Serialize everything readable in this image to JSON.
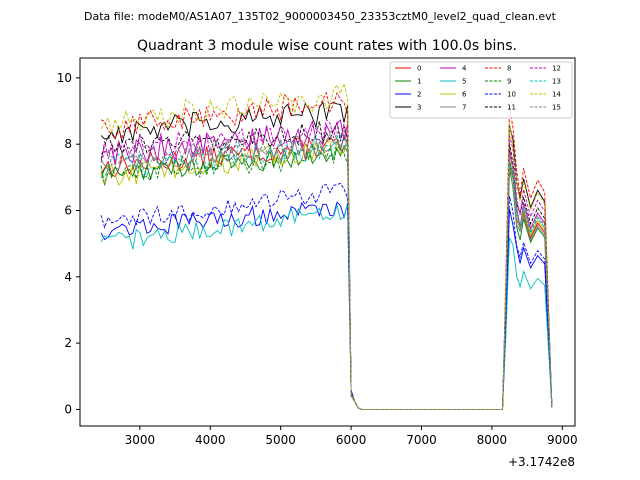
{
  "suptitle": "Data file: modeM0/AS1A07_135T02_9000003450_23353cztM0_level2_quad_clean.evt",
  "chart_data": {
    "type": "line",
    "title": "Quadrant 3 module wise count rates with 100.0s bins.",
    "xlabel": "",
    "ylabel": "",
    "x_offset_label": "+3.1742e8",
    "xlim": [
      2150,
      9180
    ],
    "ylim": [
      -0.5,
      10.6
    ],
    "x_ticks": [
      3000,
      4000,
      5000,
      6000,
      7000,
      8000,
      9000
    ],
    "x_tick_labels": [
      "3000",
      "4000",
      "5000",
      "6000",
      "7000",
      "8000",
      "9000"
    ],
    "y_ticks": [
      0,
      2,
      4,
      6,
      8,
      10
    ],
    "y_tick_labels": [
      "0",
      "2",
      "4",
      "6",
      "8",
      "10"
    ],
    "grid": false,
    "legend_position": "top-right",
    "segments": [
      [
        2450,
        5950
      ],
      [
        6000,
        6150
      ],
      [
        8150,
        8850
      ]
    ],
    "series": [
      {
        "name": "0",
        "color": "#ff0000",
        "dash": false,
        "level": 7.3,
        "amp": 0.35,
        "trend": 0.7,
        "peak": 7.4
      },
      {
        "name": "1",
        "color": "#008000",
        "dash": false,
        "level": 7.1,
        "amp": 0.3,
        "trend": 0.6,
        "peak": 7.2
      },
      {
        "name": "2",
        "color": "#0000ff",
        "dash": false,
        "level": 5.4,
        "amp": 0.3,
        "trend": 0.7,
        "peak": 6.1
      },
      {
        "name": "3",
        "color": "#000000",
        "dash": false,
        "level": 8.3,
        "amp": 0.4,
        "trend": 0.7,
        "peak": 8.7
      },
      {
        "name": "4",
        "color": "#bf00bf",
        "dash": false,
        "level": 7.7,
        "amp": 0.4,
        "trend": 0.7,
        "peak": 7.8
      },
      {
        "name": "5",
        "color": "#00bfbf",
        "dash": false,
        "level": 5.0,
        "amp": 0.3,
        "trend": 1.0,
        "peak": 5.2
      },
      {
        "name": "6",
        "color": "#bfbf00",
        "dash": false,
        "level": 7.0,
        "amp": 0.35,
        "trend": 0.9,
        "peak": 7.5
      },
      {
        "name": "7",
        "color": "#808080",
        "dash": false,
        "level": 7.4,
        "amp": 0.3,
        "trend": 0.5,
        "peak": 7.3
      },
      {
        "name": "8",
        "color": "#ff0000",
        "dash": true,
        "level": 8.5,
        "amp": 0.4,
        "trend": 0.8,
        "peak": 9.1
      },
      {
        "name": "9",
        "color": "#008000",
        "dash": true,
        "level": 7.1,
        "amp": 0.35,
        "trend": 0.6,
        "peak": 7.6
      },
      {
        "name": "10",
        "color": "#0000ff",
        "dash": true,
        "level": 5.6,
        "amp": 0.3,
        "trend": 1.0,
        "peak": 6.3
      },
      {
        "name": "11",
        "color": "#000000",
        "dash": true,
        "level": 7.9,
        "amp": 0.35,
        "trend": 0.5,
        "peak": 8.0
      },
      {
        "name": "12",
        "color": "#bf00bf",
        "dash": true,
        "level": 7.8,
        "amp": 0.4,
        "trend": 0.6,
        "peak": 8.3
      },
      {
        "name": "13",
        "color": "#00bfbf",
        "dash": true,
        "level": 7.3,
        "amp": 0.4,
        "trend": 0.7,
        "peak": 7.6
      },
      {
        "name": "14",
        "color": "#bfbf00",
        "dash": true,
        "level": 8.7,
        "amp": 0.4,
        "trend": 0.8,
        "peak": 8.6
      },
      {
        "name": "15",
        "color": "#808080",
        "dash": true,
        "level": 7.6,
        "amp": 0.35,
        "trend": 0.5,
        "peak": 7.7
      }
    ]
  }
}
